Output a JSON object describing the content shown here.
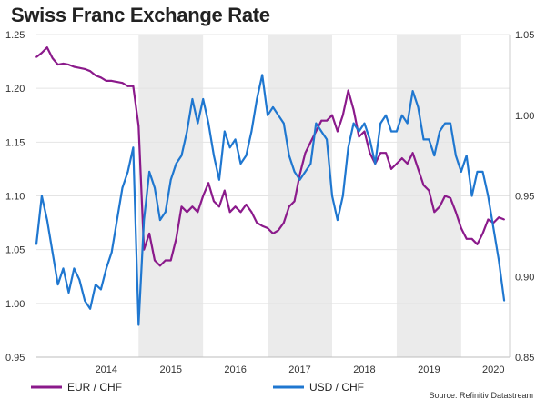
{
  "title": "Swiss Franc Exchange Rate",
  "source": "Source: Refinitiv Datastream",
  "chart_data": {
    "type": "line",
    "title": "Swiss Franc Exchange Rate",
    "x_ticks": [
      "2014",
      "2015",
      "2016",
      "2017",
      "2018",
      "2019",
      "2020"
    ],
    "x_range": [
      "2013-06",
      "2020-09"
    ],
    "grid": true,
    "legend_placement": "bottom",
    "shaded_years": [
      "2015",
      "2017",
      "2019"
    ],
    "shade_color": "#ebebeb",
    "y_left": {
      "ticks": [
        "0.95",
        "1.00",
        "1.05",
        "1.10",
        "1.15",
        "1.20",
        "1.25"
      ],
      "ylim": [
        0.95,
        1.25
      ]
    },
    "y_right": {
      "ticks": [
        "0.85",
        "0.90",
        "0.95",
        "1.00",
        "1.05"
      ],
      "ylim": [
        0.85,
        1.05
      ]
    },
    "series": [
      {
        "name": "EUR / CHF",
        "axis": "left",
        "color": "#8b1a8b",
        "points": [
          [
            "2013-06",
            1.229
          ],
          [
            "2013-07",
            1.233
          ],
          [
            "2013-08",
            1.238
          ],
          [
            "2013-09",
            1.228
          ],
          [
            "2013-10",
            1.222
          ],
          [
            "2013-11",
            1.223
          ],
          [
            "2013-12",
            1.222
          ],
          [
            "2014-01",
            1.22
          ],
          [
            "2014-02",
            1.219
          ],
          [
            "2014-03",
            1.218
          ],
          [
            "2014-04",
            1.216
          ],
          [
            "2014-05",
            1.212
          ],
          [
            "2014-06",
            1.21
          ],
          [
            "2014-07",
            1.207
          ],
          [
            "2014-08",
            1.207
          ],
          [
            "2014-09",
            1.206
          ],
          [
            "2014-10",
            1.205
          ],
          [
            "2014-11",
            1.202
          ],
          [
            "2014-12",
            1.202
          ],
          [
            "2015-01",
            1.165
          ],
          [
            "2015-02",
            1.05
          ],
          [
            "2015-03",
            1.065
          ],
          [
            "2015-04",
            1.04
          ],
          [
            "2015-05",
            1.035
          ],
          [
            "2015-06",
            1.04
          ],
          [
            "2015-07",
            1.04
          ],
          [
            "2015-08",
            1.06
          ],
          [
            "2015-09",
            1.09
          ],
          [
            "2015-10",
            1.085
          ],
          [
            "2015-11",
            1.09
          ],
          [
            "2015-12",
            1.085
          ],
          [
            "2016-01",
            1.1
          ],
          [
            "2016-02",
            1.112
          ],
          [
            "2016-03",
            1.095
          ],
          [
            "2016-04",
            1.09
          ],
          [
            "2016-05",
            1.105
          ],
          [
            "2016-06",
            1.085
          ],
          [
            "2016-07",
            1.09
          ],
          [
            "2016-08",
            1.085
          ],
          [
            "2016-09",
            1.092
          ],
          [
            "2016-10",
            1.085
          ],
          [
            "2016-11",
            1.075
          ],
          [
            "2016-12",
            1.072
          ],
          [
            "2017-01",
            1.07
          ],
          [
            "2017-02",
            1.065
          ],
          [
            "2017-03",
            1.068
          ],
          [
            "2017-04",
            1.075
          ],
          [
            "2017-05",
            1.09
          ],
          [
            "2017-06",
            1.095
          ],
          [
            "2017-07",
            1.12
          ],
          [
            "2017-08",
            1.14
          ],
          [
            "2017-09",
            1.15
          ],
          [
            "2017-10",
            1.16
          ],
          [
            "2017-11",
            1.17
          ],
          [
            "2017-12",
            1.17
          ],
          [
            "2018-01",
            1.175
          ],
          [
            "2018-02",
            1.16
          ],
          [
            "2018-03",
            1.175
          ],
          [
            "2018-04",
            1.198
          ],
          [
            "2018-05",
            1.18
          ],
          [
            "2018-06",
            1.155
          ],
          [
            "2018-07",
            1.16
          ],
          [
            "2018-08",
            1.14
          ],
          [
            "2018-09",
            1.13
          ],
          [
            "2018-10",
            1.14
          ],
          [
            "2018-11",
            1.14
          ],
          [
            "2018-12",
            1.125
          ],
          [
            "2019-01",
            1.13
          ],
          [
            "2019-02",
            1.135
          ],
          [
            "2019-03",
            1.13
          ],
          [
            "2019-04",
            1.14
          ],
          [
            "2019-05",
            1.125
          ],
          [
            "2019-06",
            1.11
          ],
          [
            "2019-07",
            1.105
          ],
          [
            "2019-08",
            1.085
          ],
          [
            "2019-09",
            1.09
          ],
          [
            "2019-10",
            1.1
          ],
          [
            "2019-11",
            1.098
          ],
          [
            "2019-12",
            1.085
          ],
          [
            "2020-01",
            1.07
          ],
          [
            "2020-02",
            1.06
          ],
          [
            "2020-03",
            1.06
          ],
          [
            "2020-04",
            1.055
          ],
          [
            "2020-05",
            1.065
          ],
          [
            "2020-06",
            1.078
          ],
          [
            "2020-07",
            1.075
          ],
          [
            "2020-08",
            1.08
          ],
          [
            "2020-09",
            1.078
          ]
        ]
      },
      {
        "name": "USD / CHF",
        "axis": "right",
        "color": "#1f77d0",
        "points": [
          [
            "2013-06",
            0.92
          ],
          [
            "2013-07",
            0.95
          ],
          [
            "2013-08",
            0.935
          ],
          [
            "2013-09",
            0.915
          ],
          [
            "2013-10",
            0.895
          ],
          [
            "2013-11",
            0.905
          ],
          [
            "2013-12",
            0.89
          ],
          [
            "2014-01",
            0.905
          ],
          [
            "2014-02",
            0.898
          ],
          [
            "2014-03",
            0.885
          ],
          [
            "2014-04",
            0.88
          ],
          [
            "2014-05",
            0.895
          ],
          [
            "2014-06",
            0.892
          ],
          [
            "2014-07",
            0.905
          ],
          [
            "2014-08",
            0.915
          ],
          [
            "2014-09",
            0.935
          ],
          [
            "2014-10",
            0.955
          ],
          [
            "2014-11",
            0.965
          ],
          [
            "2014-12",
            0.98
          ],
          [
            "2015-01",
            0.87
          ],
          [
            "2015-02",
            0.935
          ],
          [
            "2015-03",
            0.965
          ],
          [
            "2015-04",
            0.955
          ],
          [
            "2015-05",
            0.935
          ],
          [
            "2015-06",
            0.94
          ],
          [
            "2015-07",
            0.96
          ],
          [
            "2015-08",
            0.97
          ],
          [
            "2015-09",
            0.975
          ],
          [
            "2015-10",
            0.99
          ],
          [
            "2015-11",
            1.01
          ],
          [
            "2015-12",
            0.995
          ],
          [
            "2016-01",
            1.01
          ],
          [
            "2016-02",
            0.995
          ],
          [
            "2016-03",
            0.975
          ],
          [
            "2016-04",
            0.96
          ],
          [
            "2016-05",
            0.99
          ],
          [
            "2016-06",
            0.98
          ],
          [
            "2016-07",
            0.985
          ],
          [
            "2016-08",
            0.97
          ],
          [
            "2016-09",
            0.975
          ],
          [
            "2016-10",
            0.99
          ],
          [
            "2016-11",
            1.01
          ],
          [
            "2016-12",
            1.025
          ],
          [
            "2017-01",
            1.0
          ],
          [
            "2017-02",
            1.005
          ],
          [
            "2017-03",
            1.0
          ],
          [
            "2017-04",
            0.995
          ],
          [
            "2017-05",
            0.975
          ],
          [
            "2017-06",
            0.965
          ],
          [
            "2017-07",
            0.96
          ],
          [
            "2017-08",
            0.965
          ],
          [
            "2017-09",
            0.97
          ],
          [
            "2017-10",
            0.995
          ],
          [
            "2017-11",
            0.99
          ],
          [
            "2017-12",
            0.985
          ],
          [
            "2018-01",
            0.95
          ],
          [
            "2018-02",
            0.935
          ],
          [
            "2018-03",
            0.95
          ],
          [
            "2018-04",
            0.98
          ],
          [
            "2018-05",
            0.995
          ],
          [
            "2018-06",
            0.99
          ],
          [
            "2018-07",
            0.995
          ],
          [
            "2018-08",
            0.985
          ],
          [
            "2018-09",
            0.97
          ],
          [
            "2018-10",
            0.995
          ],
          [
            "2018-11",
            1.0
          ],
          [
            "2018-12",
            0.99
          ],
          [
            "2019-01",
            0.99
          ],
          [
            "2019-02",
            1.0
          ],
          [
            "2019-03",
            0.995
          ],
          [
            "2019-04",
            1.015
          ],
          [
            "2019-05",
            1.005
          ],
          [
            "2019-06",
            0.985
          ],
          [
            "2019-07",
            0.985
          ],
          [
            "2019-08",
            0.975
          ],
          [
            "2019-09",
            0.99
          ],
          [
            "2019-10",
            0.995
          ],
          [
            "2019-11",
            0.995
          ],
          [
            "2019-12",
            0.975
          ],
          [
            "2020-01",
            0.965
          ],
          [
            "2020-02",
            0.975
          ],
          [
            "2020-03",
            0.95
          ],
          [
            "2020-04",
            0.965
          ],
          [
            "2020-05",
            0.965
          ],
          [
            "2020-06",
            0.95
          ],
          [
            "2020-07",
            0.93
          ],
          [
            "2020-08",
            0.91
          ],
          [
            "2020-09",
            0.885
          ]
        ]
      }
    ]
  }
}
